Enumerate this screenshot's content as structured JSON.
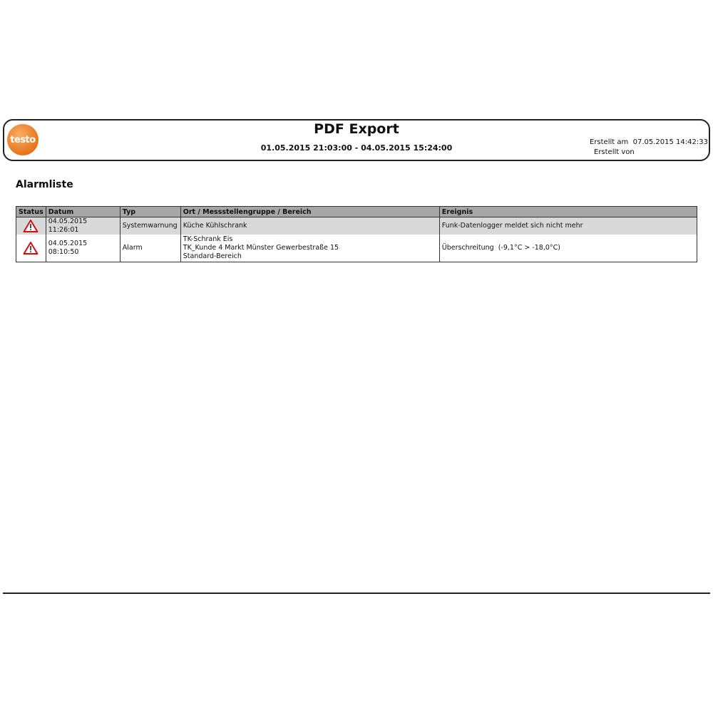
{
  "header": {
    "logo": "testo",
    "title": "PDF Export",
    "range": "01.05.2015 21:03:00 - 04.05.2015 15:24:00",
    "created_at": "Erstellt am  07.05.2015 14:42:33",
    "created_by": "Erstellt von"
  },
  "section_title": "Alarmliste",
  "table": {
    "columns": [
      "Status",
      "Datum",
      "Typ",
      "Ort / Messstellengruppe / Bereich",
      "Ereignis"
    ],
    "rows": [
      {
        "status_icon": "warning-triangle-icon",
        "datum": "04.05.2015 11:26:01",
        "typ": "Systemwarnung",
        "ort": [
          "Küche Kühlschrank"
        ],
        "ereignis": "Funk-Datenlogger meldet sich nicht mehr"
      },
      {
        "status_icon": "warning-triangle-icon",
        "datum": "04.05.2015 08:10:50",
        "typ": "Alarm",
        "ort": [
          "TK-Schrank Eis",
          "TK_Kunde 4 Markt Münster Gewerbestraße 15",
          "Standard-Bereich"
        ],
        "ereignis": "Überschreitung  (-9,1°C > -18,0°C)"
      }
    ]
  },
  "colors": {
    "logo": "#e8731c",
    "header_row": "#a6a6a6",
    "row_highlight": "#d9d9d9",
    "warning": "#d01010"
  }
}
